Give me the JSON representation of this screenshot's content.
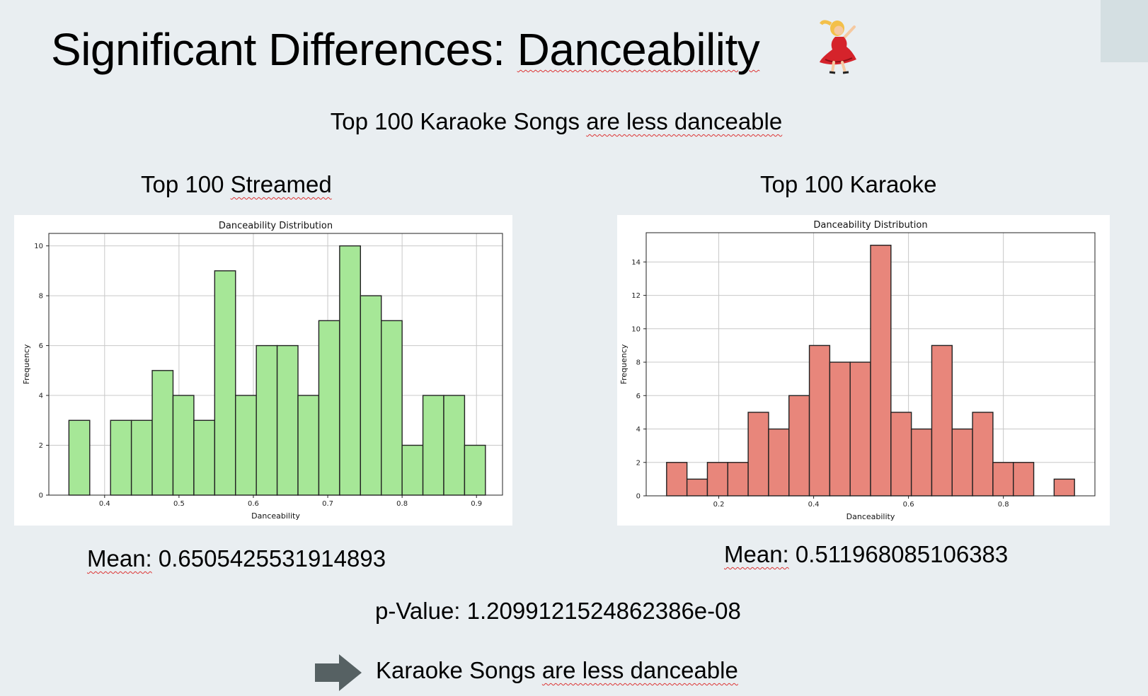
{
  "slide": {
    "title_prefix": "Significant Differences: ",
    "title_word": "Danceability",
    "subtitle_lead": "Top 100 Karaoke Songs ",
    "subtitle_tail": "are less danceable",
    "left": {
      "heading_lead": "Top 100 ",
      "heading_word": "Streamed",
      "mean_label": "Mean:",
      "mean_value": " 0.6505425531914893"
    },
    "right": {
      "heading": "Top 100 Karaoke",
      "mean_label": "Mean:",
      "mean_value": " 0.511968085106383"
    },
    "p_value": "p-Value: 1.2099121524862386e-08",
    "conclusion_lead": "Karaoke Songs ",
    "conclusion_tail": "are less danceable",
    "icons": [
      "dancer-emoji-icon",
      "right-arrow-icon"
    ],
    "colors": {
      "background": "#e9eef1",
      "streamed": "#a6e797",
      "karaoke": "#e8867b",
      "arrow": "#566163"
    }
  },
  "chart_data": [
    {
      "type": "bar",
      "title": "Danceability Distribution",
      "xlabel": "Danceability",
      "ylabel": "Frequency",
      "color": "#a6e797",
      "xlim": [
        0.325,
        0.935
      ],
      "ylim": [
        0,
        10.5
      ],
      "xticks": [
        0.4,
        0.5,
        0.6,
        0.7,
        0.8,
        0.9
      ],
      "yticks": [
        0,
        2,
        4,
        6,
        8,
        10
      ],
      "grid": true,
      "bins": [
        {
          "x0": 0.352,
          "x1": 0.38,
          "value": 3
        },
        {
          "x0": 0.408,
          "x1": 0.436,
          "value": 3
        },
        {
          "x0": 0.436,
          "x1": 0.464,
          "value": 3
        },
        {
          "x0": 0.464,
          "x1": 0.492,
          "value": 5
        },
        {
          "x0": 0.492,
          "x1": 0.52,
          "value": 4
        },
        {
          "x0": 0.52,
          "x1": 0.548,
          "value": 3
        },
        {
          "x0": 0.548,
          "x1": 0.576,
          "value": 9
        },
        {
          "x0": 0.576,
          "x1": 0.604,
          "value": 4
        },
        {
          "x0": 0.604,
          "x1": 0.632,
          "value": 6
        },
        {
          "x0": 0.632,
          "x1": 0.66,
          "value": 6
        },
        {
          "x0": 0.66,
          "x1": 0.688,
          "value": 4
        },
        {
          "x0": 0.688,
          "x1": 0.716,
          "value": 7
        },
        {
          "x0": 0.716,
          "x1": 0.744,
          "value": 10
        },
        {
          "x0": 0.744,
          "x1": 0.772,
          "value": 8
        },
        {
          "x0": 0.772,
          "x1": 0.8,
          "value": 7
        },
        {
          "x0": 0.8,
          "x1": 0.828,
          "value": 2
        },
        {
          "x0": 0.828,
          "x1": 0.856,
          "value": 4
        },
        {
          "x0": 0.856,
          "x1": 0.884,
          "value": 4
        },
        {
          "x0": 0.884,
          "x1": 0.912,
          "value": 2
        }
      ]
    },
    {
      "type": "bar",
      "title": "Danceability Distribution",
      "xlabel": "Danceability",
      "ylabel": "Frequency",
      "color": "#e8867b",
      "xlim": [
        0.047,
        0.993
      ],
      "ylim": [
        0,
        15.75
      ],
      "xticks": [
        0.2,
        0.4,
        0.6,
        0.8
      ],
      "yticks": [
        0,
        2,
        4,
        6,
        8,
        10,
        12,
        14
      ],
      "grid": true,
      "bins": [
        {
          "x0": 0.09,
          "x1": 0.133,
          "value": 2
        },
        {
          "x0": 0.133,
          "x1": 0.176,
          "value": 1
        },
        {
          "x0": 0.176,
          "x1": 0.219,
          "value": 2
        },
        {
          "x0": 0.219,
          "x1": 0.262,
          "value": 2
        },
        {
          "x0": 0.262,
          "x1": 0.305,
          "value": 5
        },
        {
          "x0": 0.305,
          "x1": 0.348,
          "value": 4
        },
        {
          "x0": 0.348,
          "x1": 0.391,
          "value": 6
        },
        {
          "x0": 0.391,
          "x1": 0.434,
          "value": 9
        },
        {
          "x0": 0.434,
          "x1": 0.477,
          "value": 8
        },
        {
          "x0": 0.477,
          "x1": 0.52,
          "value": 8
        },
        {
          "x0": 0.52,
          "x1": 0.563,
          "value": 15
        },
        {
          "x0": 0.563,
          "x1": 0.606,
          "value": 5
        },
        {
          "x0": 0.606,
          "x1": 0.649,
          "value": 4
        },
        {
          "x0": 0.649,
          "x1": 0.692,
          "value": 9
        },
        {
          "x0": 0.692,
          "x1": 0.735,
          "value": 4
        },
        {
          "x0": 0.735,
          "x1": 0.778,
          "value": 5
        },
        {
          "x0": 0.778,
          "x1": 0.821,
          "value": 2
        },
        {
          "x0": 0.821,
          "x1": 0.864,
          "value": 2
        },
        {
          "x0": 0.907,
          "x1": 0.95,
          "value": 1
        }
      ]
    }
  ]
}
